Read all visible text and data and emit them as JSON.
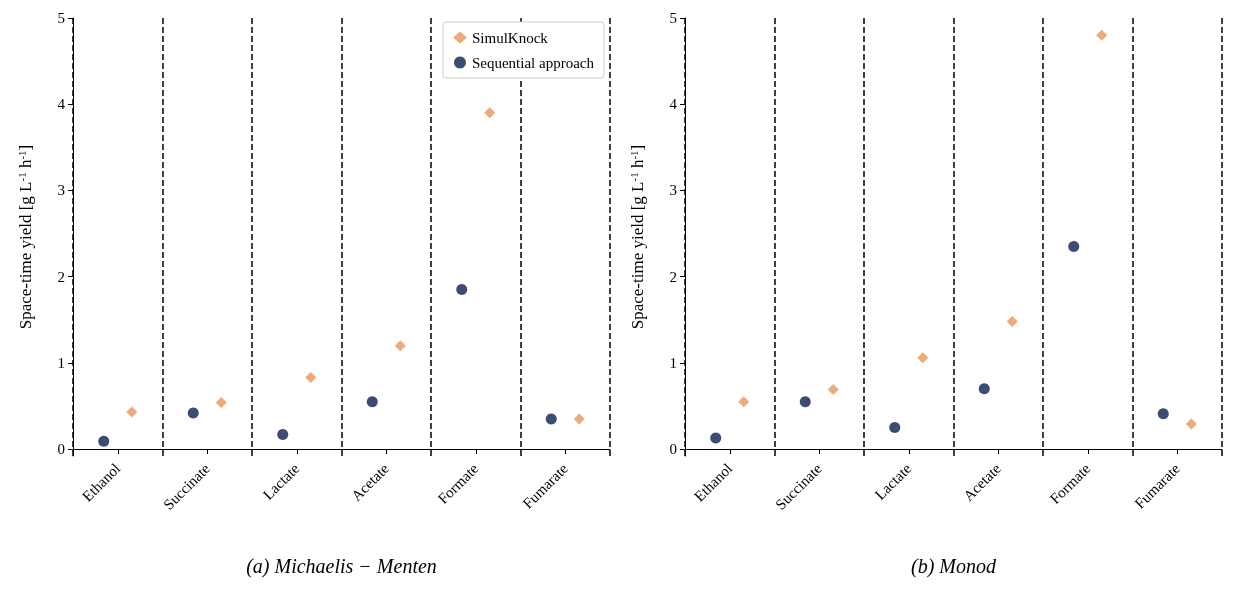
{
  "chart_data": [
    {
      "type": "scatter",
      "xlabel": "(a) Michaelis − Menten",
      "ylabel": "Space-time yield [g L$^{-1}$ h$^{-1}$]",
      "categories": [
        "Ethanol",
        "Succinate",
        "Lactate",
        "Acetate",
        "Formate",
        "Fumarate"
      ],
      "series": [
        {
          "name": "SimulKnock",
          "color": "#e8955a",
          "marker": "diamond",
          "values": [
            0.43,
            0.54,
            0.83,
            1.2,
            3.9,
            0.35
          ]
        },
        {
          "name": "Sequential approach",
          "color": "#0d1f4f",
          "marker": "circle",
          "values": [
            0.09,
            0.42,
            0.17,
            0.55,
            1.85,
            0.35
          ]
        }
      ],
      "ylim": [
        -0.08,
        5
      ],
      "yticks": [
        0,
        1,
        2,
        3,
        4,
        5
      ],
      "grid": "x",
      "line_style": "dashed",
      "legend": "top right"
    },
    {
      "type": "scatter",
      "xlabel": "(b) Monod",
      "ylabel": "Space-time yield [g L$^{-1}$ h$^{-1}$]",
      "categories": [
        "Ethanol",
        "Succinate",
        "Lactate",
        "Acetate",
        "Formate",
        "Fumarate"
      ],
      "series": [
        {
          "color": "#e8955a",
          "marker": "diamond",
          "values": [
            0.55,
            0.69,
            1.06,
            1.48,
            4.8,
            0.29
          ]
        },
        {
          "color": "#0d1f4f",
          "marker": "circle",
          "values": [
            0.13,
            0.55,
            0.25,
            0.7,
            2.35,
            0.41
          ]
        }
      ],
      "ylim": [
        -0.08,
        5
      ],
      "yticks": [
        0,
        1,
        2,
        3,
        4,
        5
      ],
      "grid": "x",
      "line_style": "dashed",
      "legend": false
    }
  ]
}
